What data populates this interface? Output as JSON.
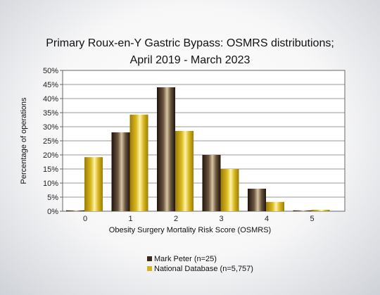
{
  "chart_data": {
    "type": "bar",
    "title_lines": [
      "Primary Roux-en-Y Gastric Bypass: OSMRS distributions;",
      "April 2019 - March 2023"
    ],
    "xlabel": "Obesity Surgery Mortality Risk Score (OSMRS)",
    "ylabel": "Percentage of operations",
    "categories": [
      "0",
      "1",
      "2",
      "3",
      "4",
      "5"
    ],
    "yticks": [
      "0%",
      "5%",
      "10%",
      "15%",
      "20%",
      "25%",
      "30%",
      "35%",
      "40%",
      "45%",
      "50%"
    ],
    "ylim": [
      0,
      50
    ],
    "grid": true,
    "legend_position": "bottom-center",
    "series": [
      {
        "name": "Mark Peter (n=25)",
        "values": [
          0,
          28,
          44,
          20,
          8,
          0
        ],
        "color": "#3a2a1c"
      },
      {
        "name": "National Database (n=5,757)",
        "values": [
          19.2,
          34.3,
          28.5,
          15.0,
          3.3,
          0.5
        ],
        "color": "#d4b21e"
      }
    ]
  }
}
